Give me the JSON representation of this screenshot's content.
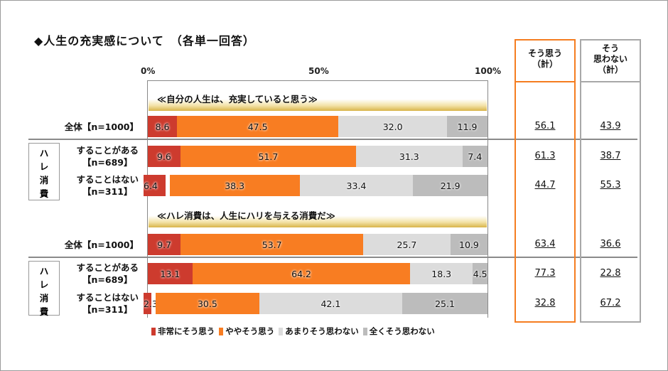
{
  "title": "◆人生の充実感について　（各単一回答）",
  "chart_data": {
    "type": "bar",
    "stacked": true,
    "orientation": "horizontal",
    "title": "人生の充実感について（各単一回答）",
    "xlim": [
      0,
      100
    ],
    "ticks": [
      "0%",
      "50%",
      "100%"
    ],
    "colors": [
      "#cd3b2e",
      "#f87d22",
      "#dcdcdc",
      "#bcbcbc"
    ],
    "legend": [
      "非常にそう思う",
      "ややそう思う",
      "あまりそう思わない",
      "全くそう思わない"
    ],
    "total_headers": {
      "agree": [
        "そう思う",
        "（計）"
      ],
      "disagree": [
        "そう",
        "思わない",
        "（計）"
      ]
    },
    "group_label": "ハレ消費",
    "sections": [
      {
        "title": "≪自分の人生は、充実していると思う≫",
        "rows": [
          {
            "label": [
              "全体【n=1000】"
            ],
            "values": [
              8.6,
              47.5,
              32.0,
              11.9
            ],
            "agree": "56.1",
            "disagree": "43.9"
          },
          {
            "label": [
              "することがある",
              "【n=689】"
            ],
            "values": [
              9.6,
              51.7,
              31.3,
              7.4
            ],
            "agree": "61.3",
            "disagree": "38.7"
          },
          {
            "label": [
              "することはない",
              "【n=311】"
            ],
            "values": [
              6.4,
              38.3,
              33.4,
              21.9
            ],
            "agree": "44.7",
            "disagree": "55.3"
          }
        ]
      },
      {
        "title": "≪ハレ消費は、人生にハリを与える消費だ≫",
        "rows": [
          {
            "label": [
              "全体【n=1000】"
            ],
            "values": [
              9.7,
              53.7,
              25.7,
              10.9
            ],
            "agree": "63.4",
            "disagree": "36.6"
          },
          {
            "label": [
              "することがある",
              "【n=689】"
            ],
            "values": [
              13.1,
              64.2,
              18.3,
              4.5
            ],
            "agree": "77.3",
            "disagree": "22.8"
          },
          {
            "label": [
              "することはない",
              "【n=311】"
            ],
            "values": [
              2.3,
              30.5,
              42.1,
              25.1
            ],
            "agree": "32.8",
            "disagree": "67.2"
          }
        ]
      }
    ]
  }
}
